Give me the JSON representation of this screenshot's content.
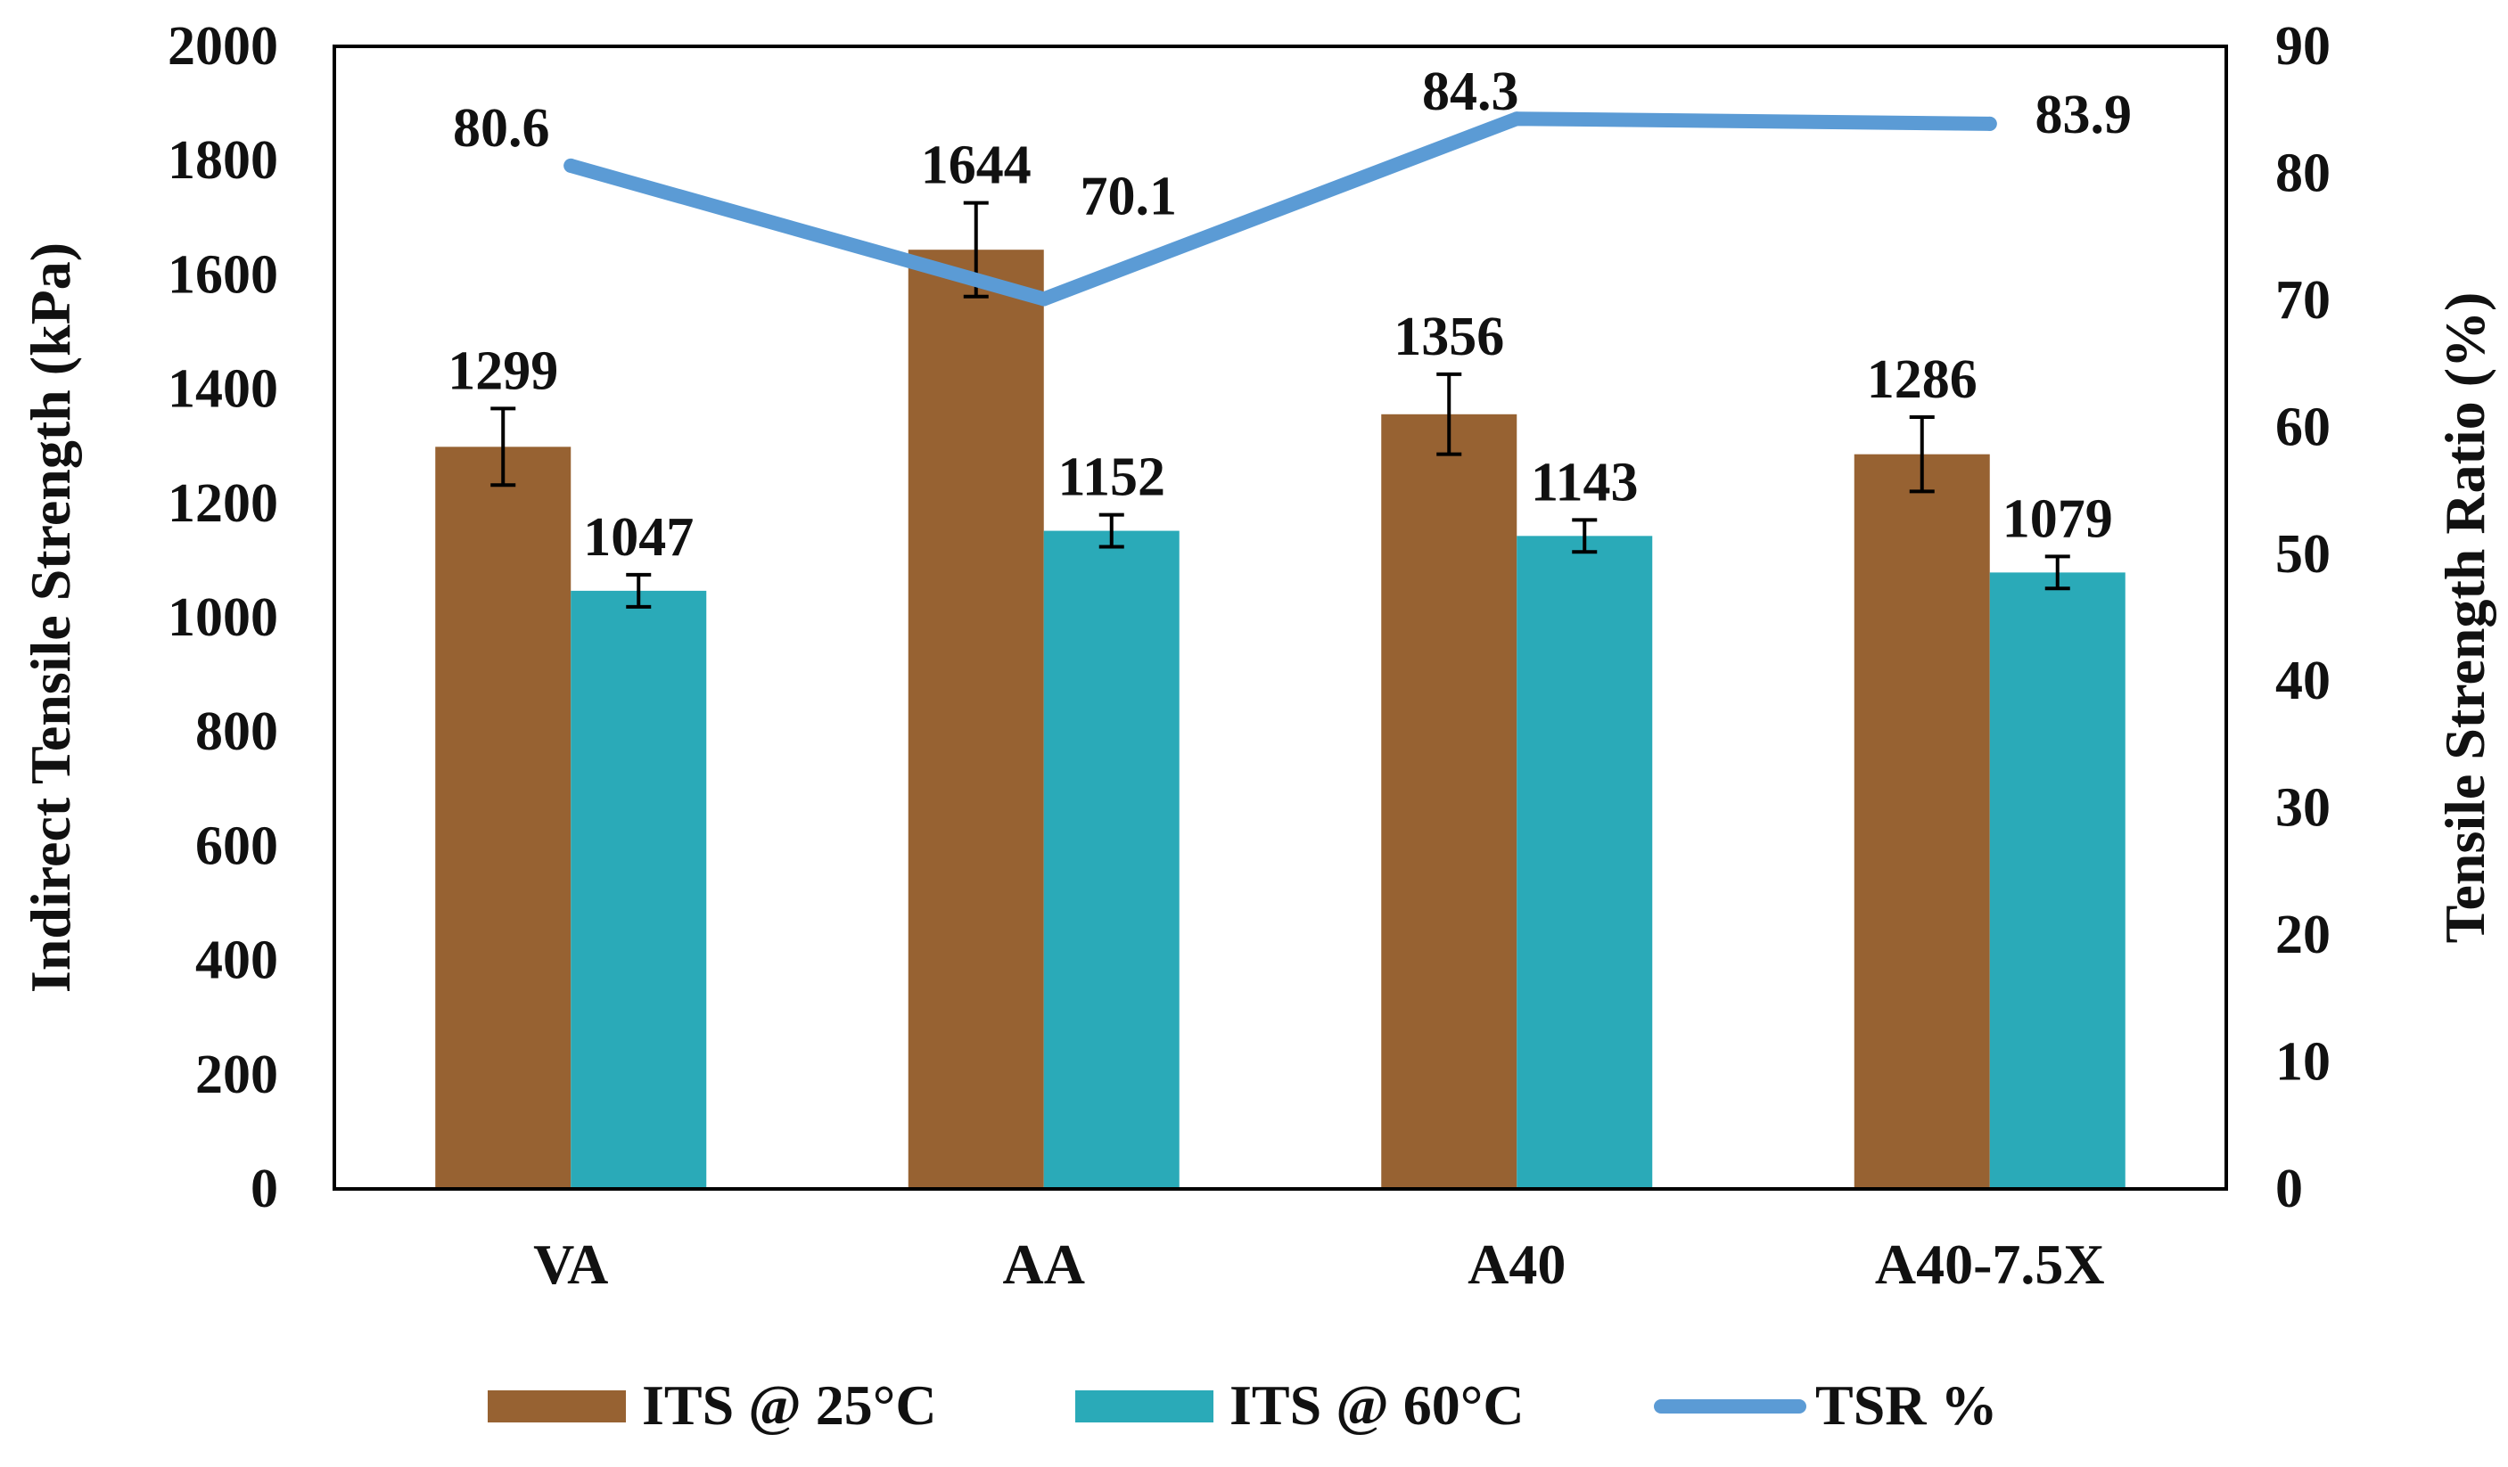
{
  "chart_data": {
    "type": "bar",
    "categories": [
      "VA",
      "AA",
      "A40",
      "A40-7.5X"
    ],
    "series": [
      {
        "name": "ITS @ 25°C",
        "axis": "left",
        "color": "#976232",
        "values": [
          1299,
          1644,
          1356,
          1286
        ],
        "labels": [
          "1299",
          "1644",
          "1356",
          "1286"
        ],
        "error": [
          67,
          82,
          70,
          65
        ]
      },
      {
        "name": "ITS @ 60°C",
        "axis": "left",
        "color": "#2aaab8",
        "values": [
          1047,
          1152,
          1143,
          1079
        ],
        "labels": [
          "1047",
          "1152",
          "1143",
          "1079"
        ],
        "error": [
          28,
          28,
          28,
          28
        ]
      },
      {
        "name": "TSR %",
        "type": "line",
        "axis": "right",
        "color": "#5b9bd5",
        "values": [
          80.6,
          70.1,
          84.3,
          83.9
        ],
        "labels": [
          "80.6",
          "70.1",
          "84.3",
          "83.9"
        ]
      }
    ],
    "ylabel": "Indirect Tensile Strength (kPa)",
    "ylabel_right": "Tensile Strength Ratio (%)",
    "ylim": [
      0,
      2000
    ],
    "ylim_right": [
      0,
      90
    ],
    "yticks": [
      "0",
      "200",
      "400",
      "600",
      "800",
      "1000",
      "1200",
      "1400",
      "1600",
      "1800",
      "2000"
    ],
    "yticks_right": [
      "0",
      "10",
      "20",
      "30",
      "40",
      "50",
      "60",
      "70",
      "80",
      "90"
    ],
    "grid": false,
    "legend_position": "bottom"
  }
}
